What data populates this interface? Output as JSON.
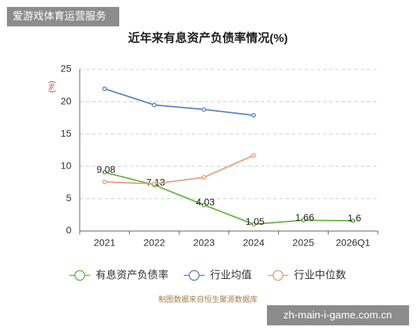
{
  "tag": "爱游戏体育运营服务",
  "source": "制图数据来自恒生聚源数据库",
  "watermark": "zh-main-i-game.com.cn",
  "chart_data": {
    "type": "line",
    "title": "近年来有息资产负债率情况(%)",
    "y_label": "(%)",
    "categories": [
      "2021",
      "2022",
      "2023",
      "2024",
      "2025",
      "2026Q1"
    ],
    "series": [
      {
        "name": "有息资产负债率",
        "color": "#6ab547",
        "values": [
          9.08,
          7.13,
          4.03,
          1.05,
          1.66,
          1.6
        ],
        "show_labels": true
      },
      {
        "name": "行业均值",
        "color": "#5b86c5",
        "values": [
          22.0,
          19.5,
          18.8,
          17.9,
          null,
          null
        ]
      },
      {
        "name": "行业中位数",
        "color": "#e8a07f",
        "values": [
          7.6,
          7.3,
          8.3,
          11.7,
          null,
          null
        ]
      }
    ],
    "ylim": [
      0,
      25
    ],
    "yticks": [
      0,
      5,
      10,
      15,
      20,
      25
    ],
    "grid": true
  }
}
